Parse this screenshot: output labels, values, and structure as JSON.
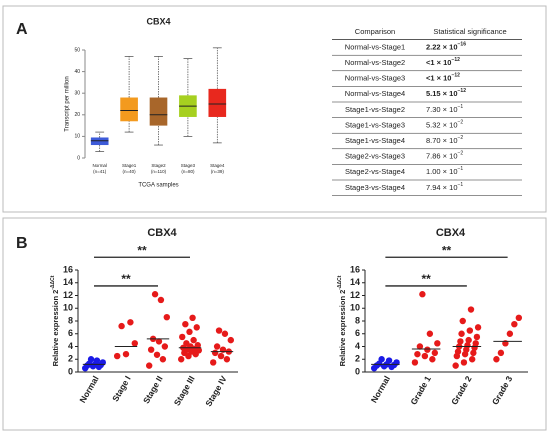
{
  "panels": [
    "A",
    "B"
  ],
  "chart_data": [
    {
      "type": "box",
      "title": "CBX4",
      "ylabel": "Transcript per million",
      "xlabel": "TCGA samples",
      "categories": [
        "Normal",
        "Stage1",
        "Stage2",
        "Stage3",
        "Stage4"
      ],
      "sublabels": [
        "(n=41)",
        "(n=40)",
        "(n=110)",
        "(n=80)",
        "(n=39)"
      ],
      "colors": [
        "#3d5bd9",
        "#f39a1e",
        "#a8662a",
        "#a6d020",
        "#e8281e"
      ],
      "boxes": [
        {
          "min": 3,
          "q1": 6,
          "median": 8,
          "q3": 9.5,
          "max": 12
        },
        {
          "min": 12,
          "q1": 17,
          "median": 22,
          "q3": 28,
          "max": 47
        },
        {
          "min": 6,
          "q1": 15,
          "median": 20,
          "q3": 28,
          "max": 47
        },
        {
          "min": 10,
          "q1": 19,
          "median": 24,
          "q3": 29,
          "max": 46
        },
        {
          "min": 7,
          "q1": 19,
          "median": 25,
          "q3": 32,
          "max": 51
        }
      ],
      "ylim": [
        0,
        50
      ],
      "yticks": [
        0,
        10,
        20,
        30,
        40,
        50
      ]
    },
    {
      "type": "dot",
      "title": "CBX4",
      "ylabel": "Relative expression 2",
      "ylabel_superscript": "-ΔΔCt",
      "categories": [
        "Normal",
        "Stage I",
        "Stage II",
        "Stage III",
        "Stage IV"
      ],
      "colors": [
        "#1a1ae6",
        "#e61a1a",
        "#e61a1a",
        "#e61a1a",
        "#e61a1a"
      ],
      "points": [
        [
          0.6,
          0.8,
          0.9,
          1.0,
          1.1,
          1.2,
          1.3,
          1.5,
          1.8,
          2.0
        ],
        [
          2.5,
          2.8,
          4.5,
          7.2,
          7.8
        ],
        [
          1.0,
          2.0,
          2.7,
          3.5,
          4.0,
          4.8,
          5.2,
          8.6,
          11.3,
          12.2
        ],
        [
          2.0,
          2.5,
          2.8,
          3.0,
          3.2,
          3.4,
          3.5,
          3.6,
          3.8,
          4.0,
          4.2,
          4.5,
          5.0,
          5.5,
          6.3,
          7.0,
          7.5,
          8.5
        ],
        [
          1.5,
          2.0,
          2.5,
          3.0,
          3.2,
          3.5,
          4.0,
          5.0,
          6.0,
          6.5
        ]
      ],
      "means": [
        1.2,
        4.0,
        5.2,
        3.8,
        3.2
      ],
      "ylim": [
        0,
        16
      ],
      "yticks": [
        0,
        2,
        4,
        6,
        8,
        10,
        12,
        14,
        16
      ],
      "annotations": [
        {
          "from": "Normal",
          "to": "Stage II",
          "level": 13.5,
          "label": "**"
        },
        {
          "from": "Normal",
          "to": "Stage III",
          "level": 18,
          "label": "**"
        }
      ]
    },
    {
      "type": "dot",
      "title": "CBX4",
      "ylabel": "Relative expression 2",
      "ylabel_superscript": "-ΔΔCt",
      "categories": [
        "Normal",
        "Grade 1",
        "Grade 2",
        "Grade 3"
      ],
      "colors": [
        "#1a1ae6",
        "#e61a1a",
        "#e61a1a",
        "#e61a1a"
      ],
      "points": [
        [
          0.6,
          0.8,
          0.9,
          1.0,
          1.1,
          1.2,
          1.3,
          1.5,
          1.8,
          2.0
        ],
        [
          1.5,
          2.0,
          2.5,
          2.8,
          3.0,
          3.5,
          4.0,
          4.5,
          6.0,
          12.2
        ],
        [
          1.0,
          1.5,
          2.0,
          2.5,
          2.8,
          3.0,
          3.2,
          3.5,
          3.8,
          4.0,
          4.2,
          4.5,
          4.8,
          5.0,
          5.5,
          6.0,
          6.5,
          7.0,
          8.0,
          9.8
        ],
        [
          2.0,
          3.0,
          4.5,
          6.0,
          7.5,
          8.5
        ]
      ],
      "means": [
        1.2,
        3.6,
        4.0,
        4.8
      ],
      "ylim": [
        0,
        16
      ],
      "yticks": [
        0,
        2,
        4,
        6,
        8,
        10,
        12,
        14,
        16
      ],
      "annotations": [
        {
          "from": "Normal",
          "to": "Grade 2",
          "level": 13.5,
          "label": "**"
        },
        {
          "from": "Normal",
          "to": "Grade 3",
          "level": 18,
          "label": "**"
        }
      ]
    }
  ],
  "table": {
    "header": [
      "Comparison",
      "Statistical significance"
    ],
    "rows": [
      {
        "comparison": "Normal-vs-Stage1",
        "significance": "2.22 × 10",
        "exponent": "−16",
        "bold": true
      },
      {
        "comparison": "Normal-vs-Stage2",
        "significance": "<1 × 10",
        "exponent": "−12",
        "bold": true
      },
      {
        "comparison": "Normal-vs-Stage3",
        "significance": "<1 × 10",
        "exponent": "−12",
        "bold": true
      },
      {
        "comparison": "Normal-vs-Stage4",
        "significance": "5.15 × 10",
        "exponent": "−12",
        "bold": true
      },
      {
        "comparison": "Stage1-vs-Stage2",
        "significance": "7.30 × 10",
        "exponent": "−1",
        "bold": false
      },
      {
        "comparison": "Stage1-vs-Stage3",
        "significance": "5.32 × 10",
        "exponent": "−2",
        "bold": false
      },
      {
        "comparison": "Stage1-vs-Stage4",
        "significance": "8.70 × 10",
        "exponent": "−2",
        "bold": false
      },
      {
        "comparison": "Stage2-vs-Stage3",
        "significance": "7.86 × 10",
        "exponent": "−2",
        "bold": false
      },
      {
        "comparison": "Stage2-vs-Stage4",
        "significance": "1.00 × 10",
        "exponent": "−1",
        "bold": false
      },
      {
        "comparison": "Stage3-vs-Stage4",
        "significance": "7.94 × 10",
        "exponent": "−1",
        "bold": false
      }
    ]
  }
}
